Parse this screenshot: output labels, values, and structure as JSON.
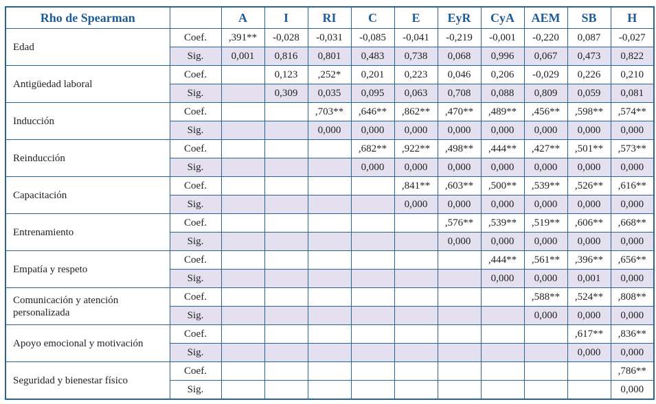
{
  "table": {
    "title": "Rho de Spearman",
    "row_header_labels": {
      "coef": "Coef.",
      "sig": "Sig."
    },
    "columns": [
      "A",
      "I",
      "RI",
      "C",
      "E",
      "EyR",
      "CyA",
      "AEM",
      "SB",
      "H"
    ],
    "rows": [
      {
        "label": "Edad",
        "coef": [
          ",391**",
          "-0,028",
          "-0,031",
          "-0,085",
          "-0,041",
          "-0,219",
          "-0,001",
          "-0,220",
          "0,087",
          "-0,027"
        ],
        "sig": [
          "0,001",
          "0,816",
          "0,801",
          "0,483",
          "0,738",
          "0,068",
          "0,996",
          "0,067",
          "0,473",
          "0,822"
        ],
        "sig_shaded": true
      },
      {
        "label": "Antigüedad laboral",
        "coef": [
          "",
          "0,123",
          ",252*",
          "0,201",
          "0,223",
          "0,046",
          "0,206",
          "-0,029",
          "0,226",
          "0,210"
        ],
        "sig": [
          "",
          "0,309",
          "0,035",
          "0,095",
          "0,063",
          "0,708",
          "0,088",
          "0,809",
          "0,059",
          "0,081"
        ],
        "sig_shaded": true
      },
      {
        "label": "Inducción",
        "coef": [
          "",
          "",
          ",703**",
          ",646**",
          ",862**",
          ",470**",
          ",489**",
          ",456**",
          ",598**",
          ",574**"
        ],
        "sig": [
          "",
          "",
          "0,000",
          "0,000",
          "0,000",
          "0,000",
          "0,000",
          "0,000",
          "0,000",
          "0,000"
        ],
        "sig_shaded": true
      },
      {
        "label": "Reinducción",
        "coef": [
          "",
          "",
          "",
          ",682**",
          ",922**",
          ",498**",
          ",444**",
          ",427**",
          ",501**",
          ",573**"
        ],
        "sig": [
          "",
          "",
          "",
          "0,000",
          "0,000",
          "0,000",
          "0,000",
          "0,000",
          "0,000",
          "0,000"
        ],
        "sig_shaded": true
      },
      {
        "label": "Capacitación",
        "coef": [
          "",
          "",
          "",
          "",
          ",841**",
          ",603**",
          ",500**",
          ",539**",
          ",526**",
          ",616**"
        ],
        "sig": [
          "",
          "",
          "",
          "",
          "0,000",
          "0,000",
          "0,000",
          "0,000",
          "0,000",
          "0,000"
        ],
        "sig_shaded": true
      },
      {
        "label": "Entrenamiento",
        "coef": [
          "",
          "",
          "",
          "",
          "",
          ",576**",
          ",539**",
          ",519**",
          ",606**",
          ",668**"
        ],
        "sig": [
          "",
          "",
          "",
          "",
          "",
          "0,000",
          "0,000",
          "0,000",
          "0,000",
          "0,000"
        ],
        "sig_shaded": true
      },
      {
        "label": "Empatía y respeto",
        "coef": [
          "",
          "",
          "",
          "",
          "",
          "",
          ",444**",
          ",561**",
          ",396**",
          ",656**"
        ],
        "sig": [
          "",
          "",
          "",
          "",
          "",
          "",
          "0,000",
          "0,000",
          "0,001",
          "0,000"
        ],
        "sig_shaded": true
      },
      {
        "label": "Comunicación y atención personalizada",
        "coef": [
          "",
          "",
          "",
          "",
          "",
          "",
          "",
          ",588**",
          ",524**",
          ",808**"
        ],
        "sig": [
          "",
          "",
          "",
          "",
          "",
          "",
          "",
          "0,000",
          "0,000",
          "0,000"
        ],
        "sig_shaded": true
      },
      {
        "label": "Apoyo emocional y motivación",
        "coef": [
          "",
          "",
          "",
          "",
          "",
          "",
          "",
          "",
          ",617**",
          ",836**"
        ],
        "sig": [
          "",
          "",
          "",
          "",
          "",
          "",
          "",
          "",
          "0,000",
          "0,000"
        ],
        "sig_shaded": true
      },
      {
        "label": "Seguridad y bienestar físico",
        "coef": [
          "",
          "",
          "",
          "",
          "",
          "",
          "",
          "",
          "",
          ",786**"
        ],
        "sig": [
          "",
          "",
          "",
          "",
          "",
          "",
          "",
          "",
          "",
          "0,000"
        ],
        "sig_shaded": false
      }
    ],
    "colors": {
      "border": "#26618f",
      "header_text": "#1f5b94",
      "sig_row_background": "#e4e0ef",
      "data_text": "#1f1f1f"
    }
  }
}
